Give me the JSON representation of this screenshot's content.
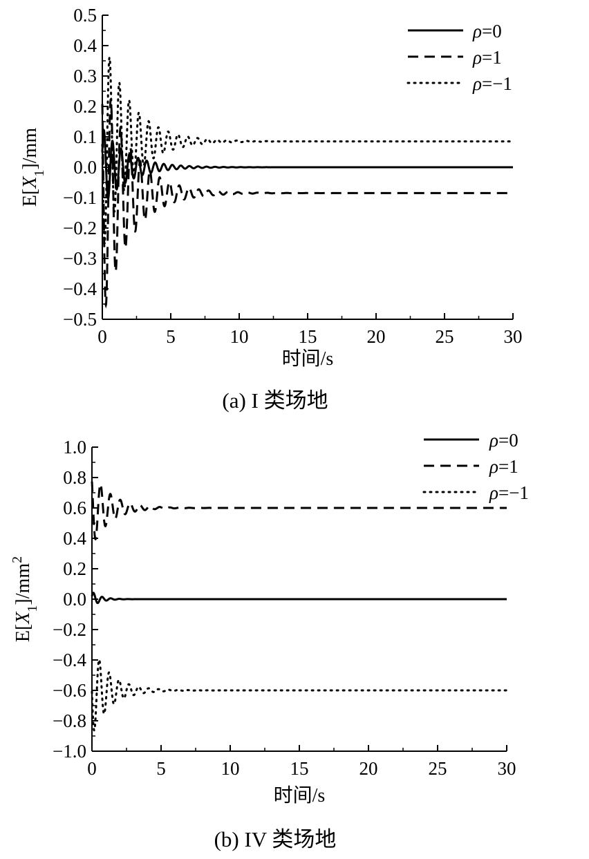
{
  "chart_data": [
    {
      "type": "line",
      "caption": "(a) I 类场地",
      "xlabel": "时间/s",
      "ylabel": "E[X1]/mm",
      "ylabel_parts": {
        "prefix": "E[",
        "var": "X",
        "sub": "1",
        "suffix": "]/mm",
        "sup": ""
      },
      "xlim": [
        0,
        30
      ],
      "ylim": [
        -0.5,
        0.5
      ],
      "x_ticks": [
        "0",
        "5",
        "10",
        "15",
        "20",
        "25",
        "30"
      ],
      "y_ticks": [
        "0.5",
        "0.4",
        "0.3",
        "0.2",
        "0.1",
        "0.0",
        "−0.1",
        "−0.2",
        "−0.3",
        "−0.4",
        "−0.5"
      ],
      "legend_position": "top-right",
      "series": [
        {
          "name": "ρ=0",
          "symbol": "ρ",
          "rest": "=0",
          "style": "solid",
          "steady": 0.0,
          "amp0": 0.13,
          "decay": 0.55
        },
        {
          "name": "ρ=1",
          "symbol": "ρ",
          "rest": "=1",
          "style": "dashed",
          "steady": -0.085,
          "amp0": 0.42,
          "decay": 0.5
        },
        {
          "name": "ρ=−1",
          "symbol": "ρ",
          "rest": "=−1",
          "style": "dotted",
          "steady": 0.085,
          "amp0": 0.36,
          "decay": 0.5
        }
      ]
    },
    {
      "type": "line",
      "caption": "(b) IV 类场地",
      "xlabel": "时间/s",
      "ylabel": "E[X1]/mm2",
      "ylabel_parts": {
        "prefix": "E[",
        "var": "X",
        "sub": "1",
        "suffix": "]/mm",
        "sup": "2"
      },
      "xlim": [
        0,
        30
      ],
      "ylim": [
        -1.0,
        1.0
      ],
      "x_ticks": [
        "0",
        "5",
        "10",
        "15",
        "20",
        "25",
        "30"
      ],
      "y_ticks": [
        "1.0",
        "0.8",
        "0.6",
        "0.4",
        "0.2",
        "0.0",
        "−0.2",
        "−0.4",
        "−0.6",
        "−0.8",
        "−1.0"
      ],
      "legend_position": "top-right",
      "series": [
        {
          "name": "ρ=0",
          "symbol": "ρ",
          "rest": "=0",
          "style": "solid",
          "steady": 0.0,
          "amp0": 0.05,
          "decay": 1.6
        },
        {
          "name": "ρ=1",
          "symbol": "ρ",
          "rest": "=1",
          "style": "dashed",
          "steady": 0.6,
          "amp0": 0.25,
          "decay": 0.75
        },
        {
          "name": "ρ=−1",
          "symbol": "ρ",
          "rest": "=−1",
          "style": "dotted",
          "steady": -0.6,
          "amp0": 0.3,
          "decay": 0.75
        }
      ]
    }
  ]
}
